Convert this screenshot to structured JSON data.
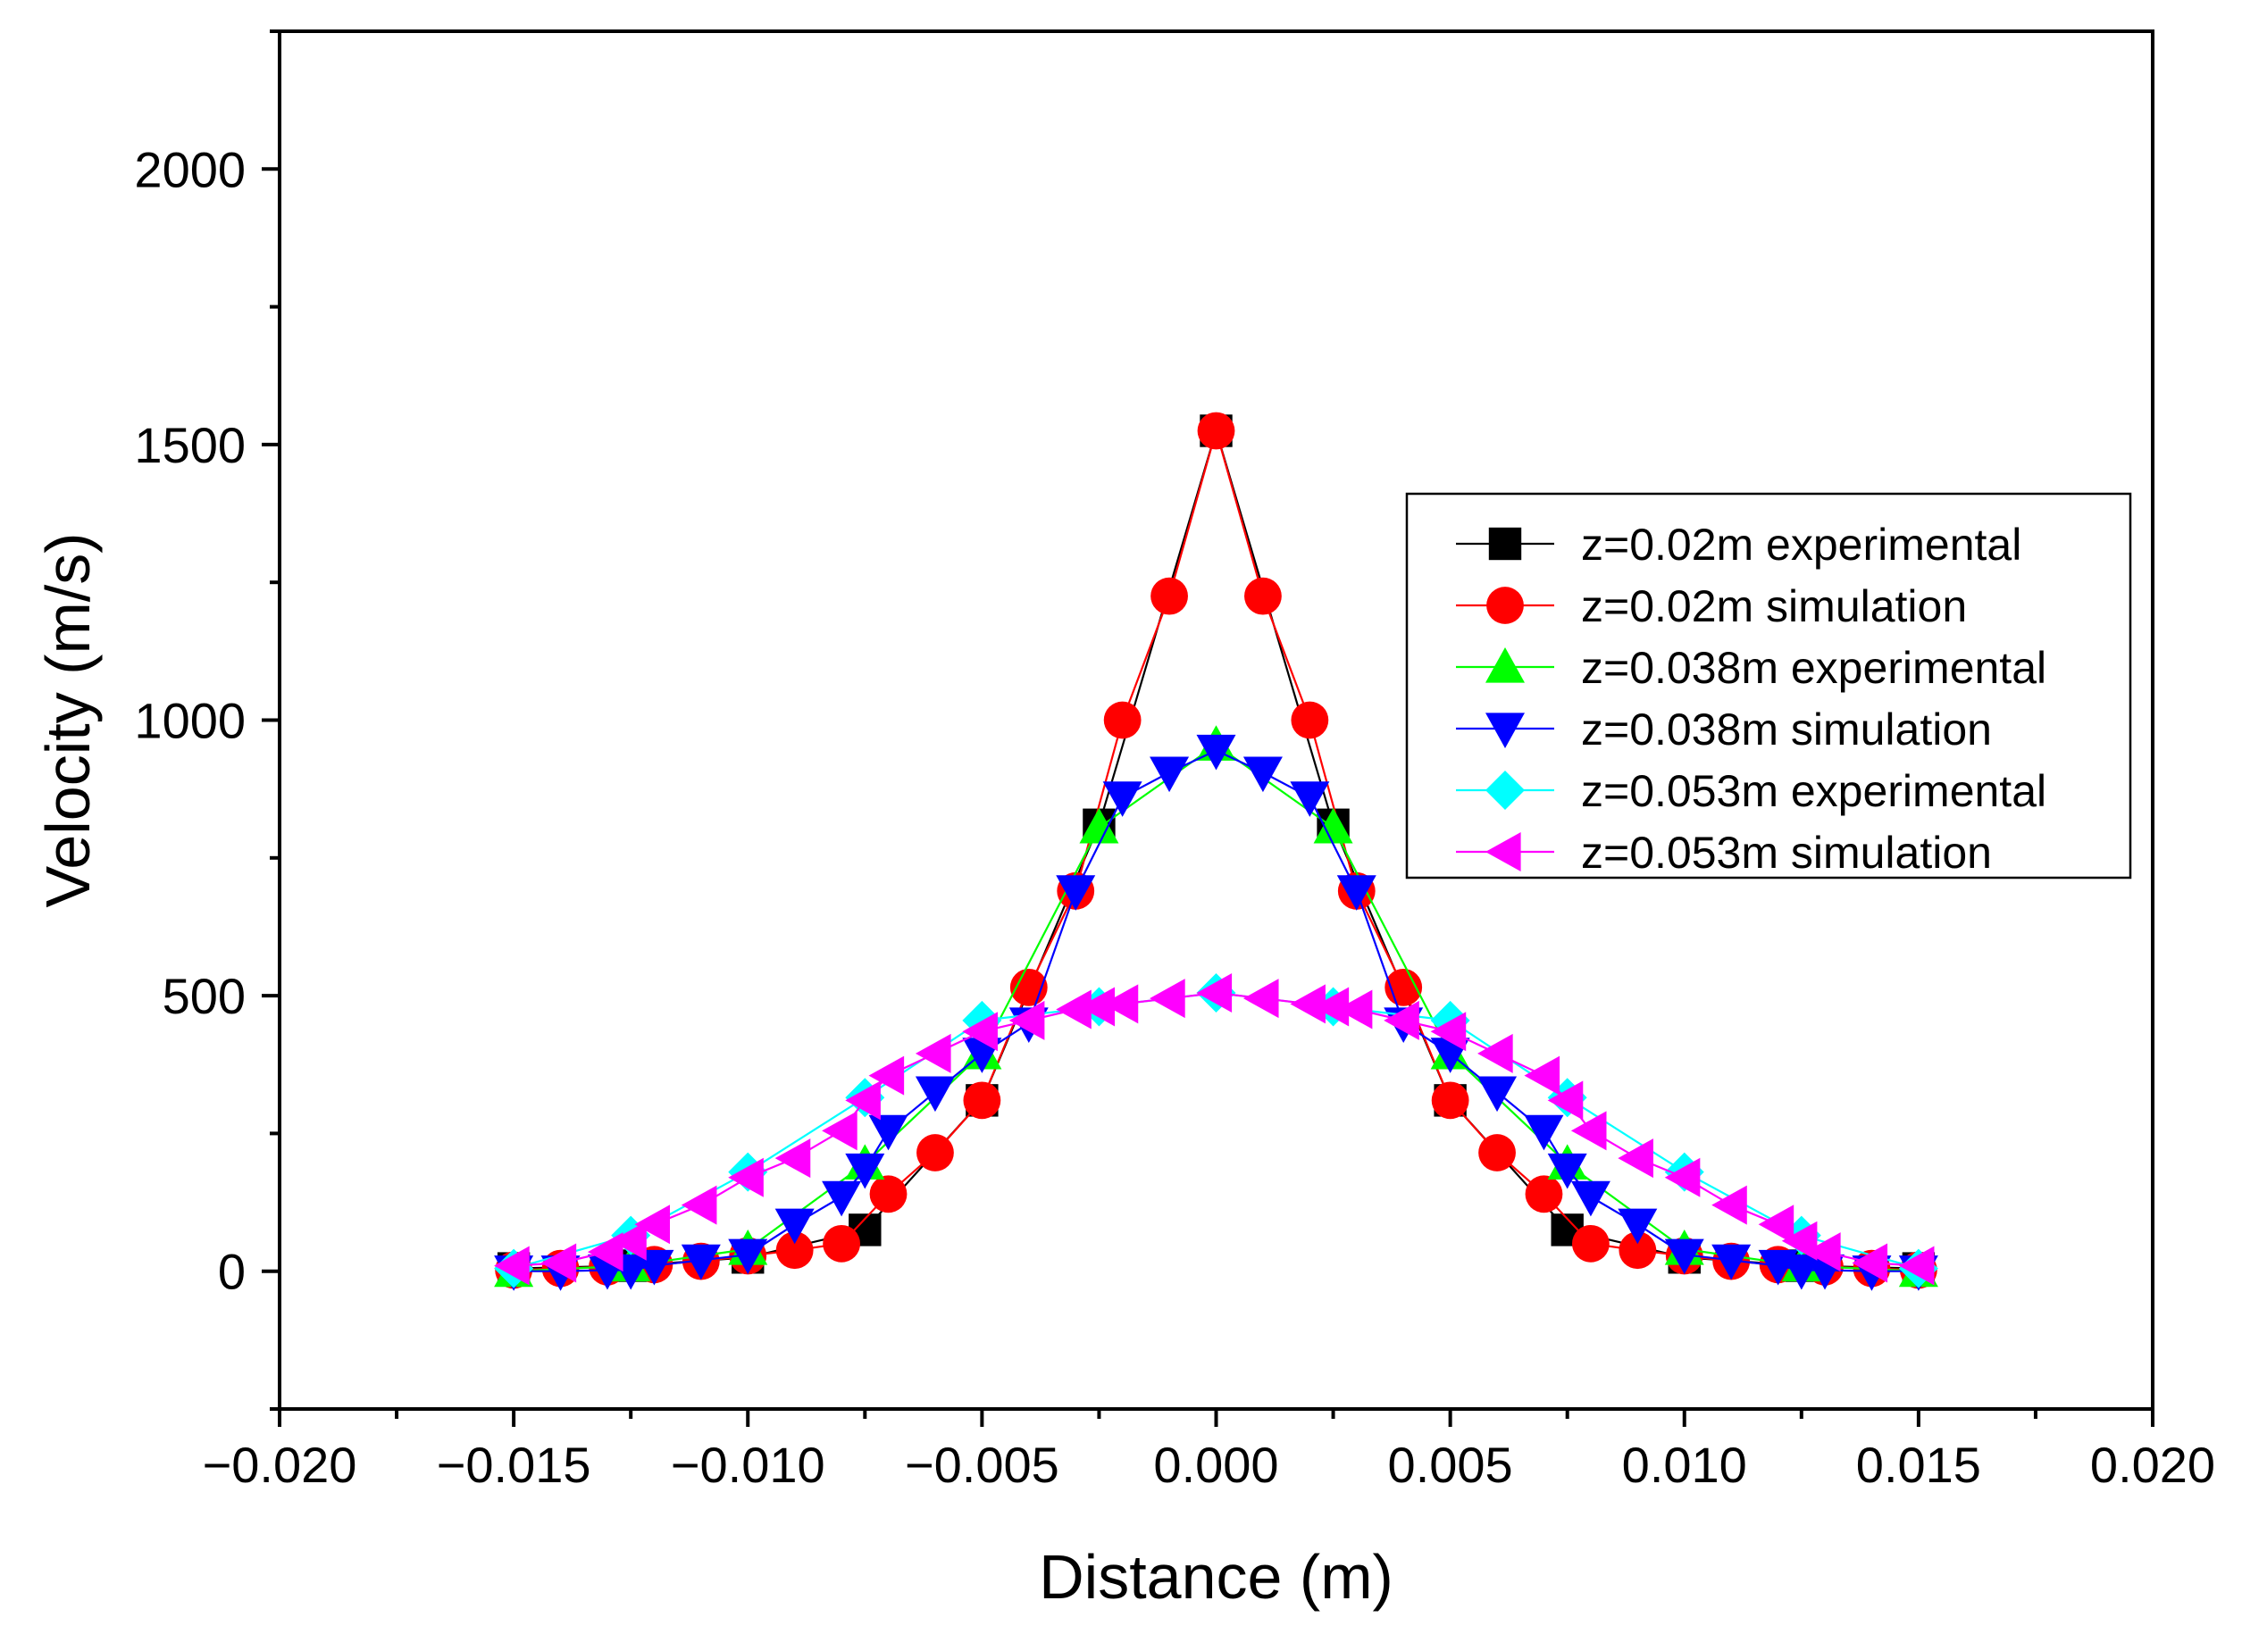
{
  "chart_data": {
    "type": "line",
    "title": "",
    "xlabel": "Distance (m)",
    "ylabel": "Velocity (m/s)",
    "xlim": [
      -0.02,
      0.02
    ],
    "ylim": [
      -250,
      2250
    ],
    "xticks": [
      -0.02,
      -0.015,
      -0.01,
      -0.005,
      0.0,
      0.005,
      0.01,
      0.015,
      0.02
    ],
    "xtick_labels": [
      "−0.020",
      "−0.015",
      "−0.010",
      "−0.005",
      "0.000",
      "0.005",
      "0.010",
      "0.015",
      "0.020"
    ],
    "yticks": [
      0,
      500,
      1000,
      1500,
      2000
    ],
    "ytick_labels": [
      "0",
      "500",
      "1000",
      "1500",
      "2000"
    ],
    "grid": false,
    "legend_position": "right",
    "series": [
      {
        "name": "z=0.02m experimental",
        "color": "#000000",
        "marker": "square",
        "x": [
          -0.015,
          -0.0125,
          -0.01,
          -0.0075,
          -0.005,
          -0.0025,
          0.0,
          0.0025,
          0.005,
          0.0075,
          0.01,
          0.0125,
          0.015
        ],
        "y": [
          5,
          10,
          25,
          75,
          310,
          810,
          1525,
          810,
          310,
          75,
          25,
          10,
          5
        ]
      },
      {
        "name": "z=0.02m simulation",
        "color": "#ff0000",
        "marker": "circle",
        "x": [
          -0.015,
          -0.014,
          -0.013,
          -0.012,
          -0.011,
          -0.01,
          -0.009,
          -0.008,
          -0.007,
          -0.006,
          -0.005,
          -0.004,
          -0.003,
          -0.002,
          -0.001,
          0.0,
          0.001,
          0.002,
          0.003,
          0.004,
          0.005,
          0.006,
          0.007,
          0.008,
          0.009,
          0.01,
          0.011,
          0.012,
          0.013,
          0.014,
          0.015
        ],
        "y": [
          2,
          5,
          8,
          12,
          18,
          28,
          38,
          50,
          140,
          215,
          310,
          515,
          690,
          1000,
          1225,
          1525,
          1225,
          1000,
          690,
          515,
          310,
          215,
          140,
          50,
          38,
          28,
          18,
          12,
          8,
          5,
          2
        ]
      },
      {
        "name": "z=0.038m experimental",
        "color": "#00ff00",
        "marker": "triangle-up",
        "x": [
          -0.015,
          -0.0125,
          -0.01,
          -0.0075,
          -0.005,
          -0.0025,
          0.0,
          0.0025,
          0.005,
          0.0075,
          0.01,
          0.0125,
          0.015
        ],
        "y": [
          0,
          10,
          40,
          195,
          395,
          805,
          955,
          805,
          395,
          195,
          40,
          10,
          0
        ]
      },
      {
        "name": "z=0.038m simulation",
        "color": "#0000ff",
        "marker": "triangle-down",
        "x": [
          -0.015,
          -0.014,
          -0.013,
          -0.0125,
          -0.012,
          -0.011,
          -0.01,
          -0.009,
          -0.008,
          -0.0075,
          -0.007,
          -0.006,
          -0.005,
          -0.004,
          -0.003,
          -0.002,
          -0.001,
          0.0,
          0.001,
          0.002,
          0.003,
          0.004,
          0.005,
          0.006,
          0.007,
          0.0075,
          0.008,
          0.009,
          0.01,
          0.011,
          0.012,
          0.0125,
          0.013,
          0.014,
          0.015
        ],
        "y": [
          0,
          0,
          2,
          2,
          10,
          20,
          30,
          85,
          135,
          185,
          255,
          325,
          395,
          450,
          690,
          860,
          905,
          945,
          905,
          860,
          690,
          450,
          395,
          325,
          255,
          185,
          135,
          85,
          30,
          20,
          10,
          2,
          2,
          0,
          0
        ]
      },
      {
        "name": "z=0.053m experimental",
        "color": "#00ffff",
        "marker": "diamond",
        "x": [
          -0.015,
          -0.0125,
          -0.01,
          -0.0075,
          -0.005,
          -0.0025,
          0.0,
          0.0025,
          0.005,
          0.0075,
          0.01,
          0.0125,
          0.015
        ],
        "y": [
          5,
          65,
          180,
          315,
          455,
          480,
          505,
          480,
          455,
          315,
          180,
          65,
          5
        ]
      },
      {
        "name": "z=0.053m simulation",
        "color": "#ff00ff",
        "marker": "triangle-left",
        "x": [
          -0.015,
          -0.014,
          -0.013,
          -0.0125,
          -0.012,
          -0.011,
          -0.01,
          -0.009,
          -0.008,
          -0.0075,
          -0.007,
          -0.006,
          -0.005,
          -0.004,
          -0.003,
          -0.0025,
          -0.002,
          -0.001,
          0.0,
          0.001,
          0.002,
          0.0025,
          0.003,
          0.004,
          0.005,
          0.006,
          0.007,
          0.0075,
          0.008,
          0.009,
          0.01,
          0.011,
          0.012,
          0.0125,
          0.013,
          0.014,
          0.015
        ],
        "y": [
          10,
          15,
          35,
          55,
          85,
          120,
          170,
          205,
          255,
          310,
          355,
          395,
          435,
          455,
          475,
          480,
          485,
          495,
          505,
          495,
          485,
          480,
          475,
          455,
          435,
          395,
          355,
          310,
          255,
          205,
          170,
          120,
          85,
          55,
          35,
          15,
          10
        ]
      }
    ]
  }
}
